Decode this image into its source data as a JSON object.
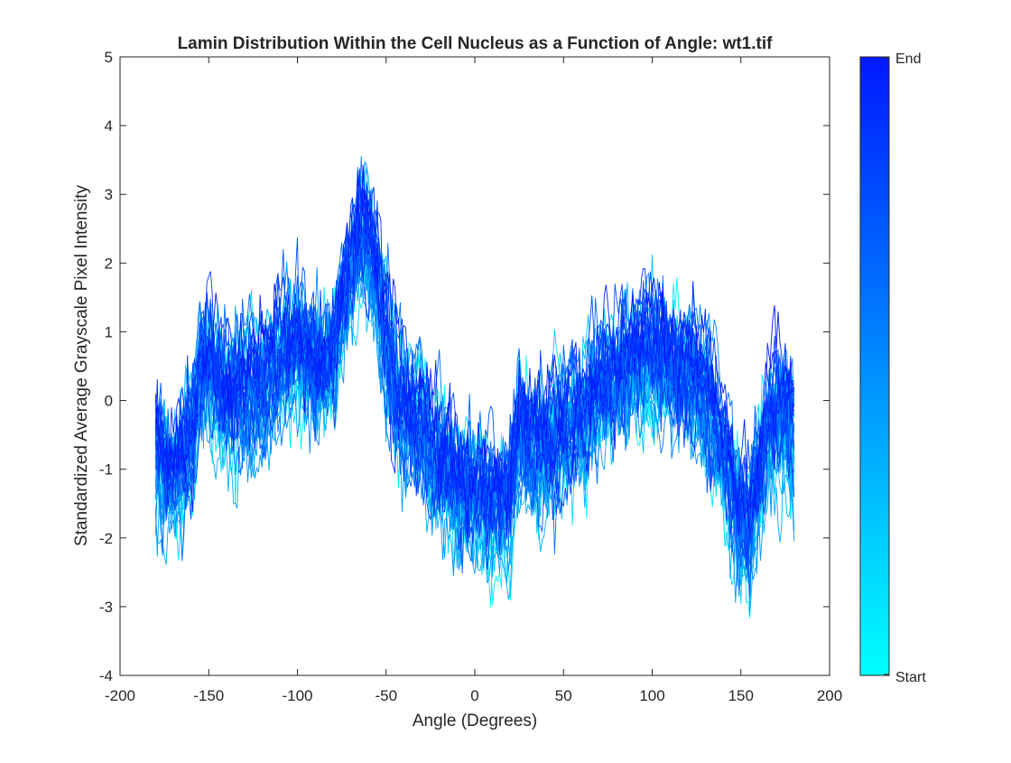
{
  "chart_data": {
    "type": "line",
    "title": "Lamin Distribution Within the Cell Nucleus as a Function of Angle: wt1.tif",
    "xlabel": "Angle (Degrees)",
    "ylabel": "Standardized Average Grayscale Pixel Intensity",
    "xlim": [
      -200,
      200
    ],
    "ylim": [
      -4,
      5
    ],
    "xticks": [
      -200,
      -150,
      -100,
      -50,
      0,
      50,
      100,
      150,
      200
    ],
    "yticks": [
      -4,
      -3,
      -2,
      -1,
      0,
      1,
      2,
      3,
      4,
      5
    ],
    "grid": false,
    "colorbar": {
      "top_label": "End",
      "bottom_label": "Start",
      "top_color": "#0019ff",
      "bottom_color": "#00ffff"
    },
    "series_count": 40,
    "x_range": [
      -180,
      180
    ],
    "mean_profile": {
      "x": [
        -180,
        -170,
        -160,
        -155,
        -150,
        -140,
        -130,
        -120,
        -110,
        -100,
        -90,
        -80,
        -75,
        -70,
        -65,
        -60,
        -55,
        -50,
        -45,
        -40,
        -30,
        -20,
        -10,
        0,
        10,
        20,
        25,
        30,
        40,
        50,
        60,
        70,
        80,
        90,
        100,
        110,
        120,
        130,
        140,
        145,
        150,
        155,
        160,
        165,
        170,
        175,
        180
      ],
      "y": [
        -0.8,
        -1.2,
        -0.7,
        0.3,
        0.5,
        0.1,
        0.0,
        0.2,
        0.6,
        0.8,
        0.4,
        0.5,
        1.2,
        1.9,
        2.3,
        2.3,
        1.8,
        0.8,
        0.1,
        -0.2,
        -0.4,
        -0.9,
        -1.3,
        -1.4,
        -1.6,
        -1.5,
        -0.3,
        -0.6,
        -0.8,
        -0.5,
        -0.2,
        0.2,
        0.3,
        0.5,
        0.7,
        0.5,
        0.4,
        0.0,
        -0.8,
        -1.3,
        -1.7,
        -1.8,
        -1.1,
        -0.4,
        -0.2,
        -0.3,
        -0.5
      ]
    },
    "spread_sd": 0.5
  }
}
